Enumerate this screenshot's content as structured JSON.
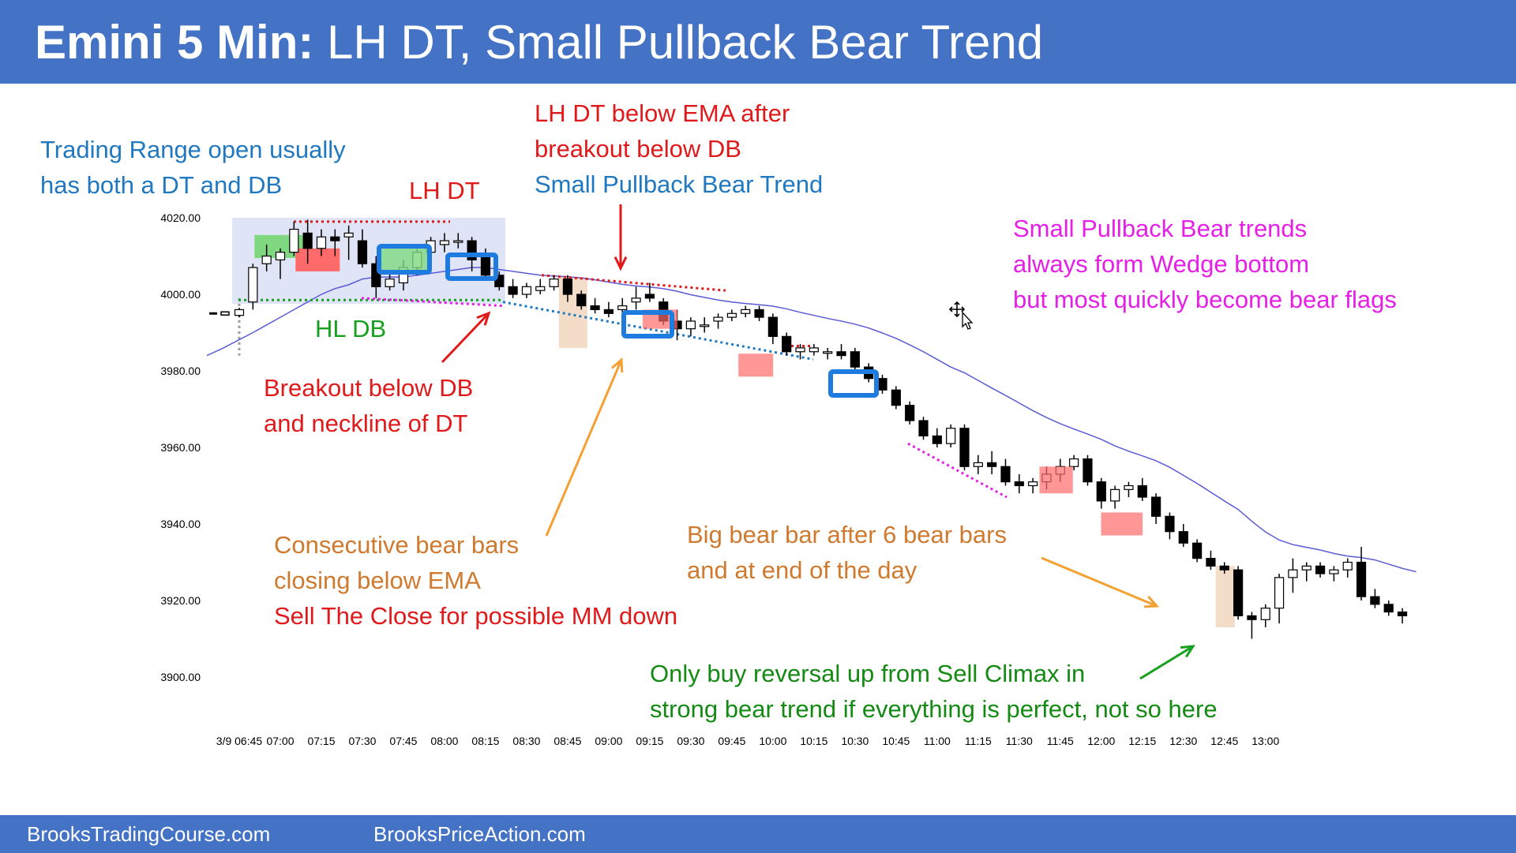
{
  "header": {
    "title_bold": "Emini 5 Min:",
    "title_rest": "LH DT, Small Pullback Bear Trend"
  },
  "footer": {
    "left": "BrooksTradingCourse.com",
    "right": "BrooksPriceAction.com"
  },
  "colors": {
    "brand_bar": "#4472c4",
    "ema": "#5b5bd6",
    "bull_body": "#ffffff",
    "bear_body": "#000000",
    "red_annotation": "#e0191b",
    "blue_annotation": "#1f78c0",
    "green_annotation": "#17a01f",
    "orange_annotation": "#cf7a2e",
    "magenta_annotation": "#e61fe6",
    "highlight_blue_box": "#1e7be0",
    "highlight_red_box": "#ff6b6b",
    "highlight_green_box": "#7fd87f",
    "range_shade": "#dfe5f7",
    "climax_shade": "#f3dcc8"
  },
  "annotations": {
    "trading_range": [
      "Trading Range open usually",
      "has both a DT and DB"
    ],
    "lh_dt_label": "LH DT",
    "hl_db_label": "HL DB",
    "lh_dt_below_ema": [
      "LH DT below EMA after",
      "breakout below DB"
    ],
    "small_pullback_bear_trend": "Small Pullback Bear Trend",
    "breakout_below_db": [
      "Breakout below DB",
      "and neckline of DT"
    ],
    "spbt_wedge": [
      "Small Pullback Bear trends",
      "always form Wedge bottom",
      "but most quickly become bear flags"
    ],
    "consecutive_bear": [
      "Consecutive bear bars",
      "closing below EMA"
    ],
    "sell_the_close": "Sell The Close for possible MM down",
    "big_bear_bar": [
      "Big bear bar after 6 bear bars",
      "and at end of the day"
    ],
    "only_buy_reversal": [
      "Only buy reversal up from Sell Climax in",
      "strong bear trend if everything is perfect, not so here"
    ]
  },
  "chart_data": {
    "type": "candlestick",
    "title": "",
    "xlabel": "",
    "ylabel": "",
    "ylim": [
      3890,
      4025
    ],
    "y_ticks": [
      "4020.00",
      "4000.00",
      "3980.00",
      "3960.00",
      "3940.00",
      "3920.00",
      "3900.00"
    ],
    "y_tick_values": [
      4020,
      4000,
      3980,
      3960,
      3940,
      3920,
      3900
    ],
    "x_tick_labels": [
      "3/9 06:45",
      "07:00",
      "07:15",
      "07:30",
      "07:45",
      "08:00",
      "08:15",
      "08:30",
      "08:45",
      "09:00",
      "09:15",
      "09:30",
      "09:45",
      "10:00",
      "10:15",
      "10:30",
      "10:45",
      "11:00",
      "11:15",
      "11:30",
      "11:45",
      "12:00",
      "12:15",
      "12:30",
      "12:45",
      "13:00"
    ],
    "x_tick_bar_index": [
      0,
      3,
      6,
      9,
      12,
      15,
      18,
      21,
      24,
      27,
      30,
      33,
      36,
      39,
      42,
      45,
      48,
      51,
      54,
      57,
      60,
      63,
      66,
      69,
      72,
      75
    ],
    "first_bar_time": "06:40",
    "bar_interval_minutes": 5,
    "prior_day_close": 3995,
    "bars": [
      {
        "o": 3994.5,
        "h": 3996.5,
        "l": 3994.0,
        "c": 3996.0
      },
      {
        "o": 3998.0,
        "h": 4008.0,
        "l": 3996.0,
        "c": 4007.0
      },
      {
        "o": 4008.0,
        "h": 4013.0,
        "l": 4006.0,
        "c": 4010.0
      },
      {
        "o": 4009.0,
        "h": 4012.0,
        "l": 4004.0,
        "c": 4011.0
      },
      {
        "o": 4011.0,
        "h": 4019.0,
        "l": 4010.0,
        "c": 4017.0
      },
      {
        "o": 4016.0,
        "h": 4019.5,
        "l": 4008.0,
        "c": 4012.0
      },
      {
        "o": 4012.0,
        "h": 4017.0,
        "l": 4010.0,
        "c": 4015.0
      },
      {
        "o": 4015.0,
        "h": 4017.0,
        "l": 4010.0,
        "c": 4014.0
      },
      {
        "o": 4015.0,
        "h": 4018.0,
        "l": 4009.0,
        "c": 4016.0
      },
      {
        "o": 4014.0,
        "h": 4017.0,
        "l": 4007.0,
        "c": 4008.0
      },
      {
        "o": 4008.0,
        "h": 4010.0,
        "l": 3999.0,
        "c": 4002.0
      },
      {
        "o": 4002.0,
        "h": 4006.0,
        "l": 4001.0,
        "c": 4004.0
      },
      {
        "o": 4003.0,
        "h": 4009.0,
        "l": 4001.0,
        "c": 4007.0
      },
      {
        "o": 4007.0,
        "h": 4012.0,
        "l": 4005.0,
        "c": 4011.0
      },
      {
        "o": 4011.0,
        "h": 4015.0,
        "l": 4009.0,
        "c": 4014.0
      },
      {
        "o": 4013.0,
        "h": 4016.0,
        "l": 4011.0,
        "c": 4014.0
      },
      {
        "o": 4014.0,
        "h": 4016.0,
        "l": 4012.0,
        "c": 4014.0
      },
      {
        "o": 4014.0,
        "h": 4015.0,
        "l": 4006.0,
        "c": 4009.0
      },
      {
        "o": 4010.0,
        "h": 4012.0,
        "l": 4004.0,
        "c": 4005.0
      },
      {
        "o": 4005.0,
        "h": 4006.0,
        "l": 4001.0,
        "c": 4002.0
      },
      {
        "o": 4002.0,
        "h": 4004.0,
        "l": 3999.0,
        "c": 4000.0
      },
      {
        "o": 4000.0,
        "h": 4003.0,
        "l": 3999.0,
        "c": 4002.0
      },
      {
        "o": 4001.0,
        "h": 4004.0,
        "l": 4000.0,
        "c": 4002.0
      },
      {
        "o": 4002.0,
        "h": 4005.0,
        "l": 4001.0,
        "c": 4004.0
      },
      {
        "o": 4004.0,
        "h": 4005.0,
        "l": 3998.0,
        "c": 4000.0
      },
      {
        "o": 4000.0,
        "h": 4001.0,
        "l": 3996.0,
        "c": 3997.0
      },
      {
        "o": 3997.0,
        "h": 3999.0,
        "l": 3995.0,
        "c": 3996.0
      },
      {
        "o": 3996.0,
        "h": 3998.0,
        "l": 3994.0,
        "c": 3995.0
      },
      {
        "o": 3996.0,
        "h": 3999.0,
        "l": 3994.0,
        "c": 3997.0
      },
      {
        "o": 3998.0,
        "h": 4002.0,
        "l": 3996.0,
        "c": 3999.0
      },
      {
        "o": 4000.0,
        "h": 4003.0,
        "l": 3998.0,
        "c": 3999.0
      },
      {
        "o": 3998.0,
        "h": 3999.0,
        "l": 3992.0,
        "c": 3993.0
      },
      {
        "o": 3993.0,
        "h": 3996.0,
        "l": 3988.0,
        "c": 3991.0
      },
      {
        "o": 3991.0,
        "h": 3994.0,
        "l": 3989.0,
        "c": 3993.0
      },
      {
        "o": 3992.0,
        "h": 3994.0,
        "l": 3990.0,
        "c": 3992.0
      },
      {
        "o": 3993.0,
        "h": 3995.0,
        "l": 3991.0,
        "c": 3994.0
      },
      {
        "o": 3994.0,
        "h": 3996.0,
        "l": 3993.0,
        "c": 3995.0
      },
      {
        "o": 3995.0,
        "h": 3997.0,
        "l": 3994.0,
        "c": 3996.0
      },
      {
        "o": 3996.0,
        "h": 3997.0,
        "l": 3993.0,
        "c": 3994.0
      },
      {
        "o": 3994.0,
        "h": 3995.0,
        "l": 3987.0,
        "c": 3989.0
      },
      {
        "o": 3989.0,
        "h": 3990.0,
        "l": 3984.0,
        "c": 3985.0
      },
      {
        "o": 3985.0,
        "h": 3987.0,
        "l": 3983.0,
        "c": 3986.0
      },
      {
        "o": 3985.0,
        "h": 3987.0,
        "l": 3984.0,
        "c": 3986.0
      },
      {
        "o": 3985.0,
        "h": 3986.0,
        "l": 3983.0,
        "c": 3985.0
      },
      {
        "o": 3985.0,
        "h": 3987.0,
        "l": 3983.0,
        "c": 3984.0
      },
      {
        "o": 3985.0,
        "h": 3986.0,
        "l": 3980.0,
        "c": 3981.0
      },
      {
        "o": 3981.0,
        "h": 3982.0,
        "l": 3977.0,
        "c": 3978.0
      },
      {
        "o": 3978.0,
        "h": 3979.0,
        "l": 3974.0,
        "c": 3975.0
      },
      {
        "o": 3975.0,
        "h": 3976.0,
        "l": 3970.0,
        "c": 3971.0
      },
      {
        "o": 3971.0,
        "h": 3972.0,
        "l": 3966.0,
        "c": 3967.0
      },
      {
        "o": 3967.0,
        "h": 3968.0,
        "l": 3962.0,
        "c": 3963.0
      },
      {
        "o": 3963.0,
        "h": 3965.0,
        "l": 3960.0,
        "c": 3961.0
      },
      {
        "o": 3961.0,
        "h": 3966.0,
        "l": 3960.0,
        "c": 3965.0
      },
      {
        "o": 3965.0,
        "h": 3966.0,
        "l": 3954.0,
        "c": 3955.0
      },
      {
        "o": 3955.0,
        "h": 3958.0,
        "l": 3953.0,
        "c": 3956.0
      },
      {
        "o": 3956.0,
        "h": 3959.0,
        "l": 3953.0,
        "c": 3955.0
      },
      {
        "o": 3955.0,
        "h": 3957.0,
        "l": 3950.0,
        "c": 3951.0
      },
      {
        "o": 3951.0,
        "h": 3953.0,
        "l": 3948.0,
        "c": 3950.0
      },
      {
        "o": 3950.0,
        "h": 3952.0,
        "l": 3948.0,
        "c": 3951.0
      },
      {
        "o": 3951.0,
        "h": 3955.0,
        "l": 3949.0,
        "c": 3953.0
      },
      {
        "o": 3953.0,
        "h": 3957.0,
        "l": 3951.0,
        "c": 3955.0
      },
      {
        "o": 3955.0,
        "h": 3958.0,
        "l": 3954.0,
        "c": 3957.0
      },
      {
        "o": 3957.0,
        "h": 3958.0,
        "l": 3950.0,
        "c": 3951.0
      },
      {
        "o": 3951.0,
        "h": 3952.0,
        "l": 3944.0,
        "c": 3946.0
      },
      {
        "o": 3946.0,
        "h": 3950.0,
        "l": 3944.0,
        "c": 3949.0
      },
      {
        "o": 3949.0,
        "h": 3951.0,
        "l": 3947.0,
        "c": 3950.0
      },
      {
        "o": 3950.0,
        "h": 3952.0,
        "l": 3946.0,
        "c": 3947.0
      },
      {
        "o": 3947.0,
        "h": 3948.0,
        "l": 3940.0,
        "c": 3942.0
      },
      {
        "o": 3942.0,
        "h": 3943.0,
        "l": 3936.0,
        "c": 3938.0
      },
      {
        "o": 3938.0,
        "h": 3940.0,
        "l": 3934.0,
        "c": 3935.0
      },
      {
        "o": 3935.0,
        "h": 3936.0,
        "l": 3930.0,
        "c": 3931.0
      },
      {
        "o": 3931.0,
        "h": 3933.0,
        "l": 3928.0,
        "c": 3929.0
      },
      {
        "o": 3929.0,
        "h": 3930.0,
        "l": 3927.0,
        "c": 3928.0
      },
      {
        "o": 3928.0,
        "h": 3929.0,
        "l": 3915.0,
        "c": 3916.0
      },
      {
        "o": 3916.0,
        "h": 3917.0,
        "l": 3910.0,
        "c": 3915.0
      },
      {
        "o": 3915.0,
        "h": 3919.0,
        "l": 3913.0,
        "c": 3918.0
      },
      {
        "o": 3918.0,
        "h": 3927.0,
        "l": 3914.0,
        "c": 3926.0
      },
      {
        "o": 3926.0,
        "h": 3931.0,
        "l": 3922.0,
        "c": 3928.0
      },
      {
        "o": 3928.0,
        "h": 3930.0,
        "l": 3925.0,
        "c": 3929.0
      },
      {
        "o": 3929.0,
        "h": 3930.0,
        "l": 3926.0,
        "c": 3927.0
      },
      {
        "o": 3927.0,
        "h": 3929.0,
        "l": 3925.0,
        "c": 3928.0
      },
      {
        "o": 3928.0,
        "h": 3931.0,
        "l": 3926.0,
        "c": 3930.0
      },
      {
        "o": 3930.0,
        "h": 3934.0,
        "l": 3920.0,
        "c": 3921.0
      },
      {
        "o": 3921.0,
        "h": 3923.0,
        "l": 3918.0,
        "c": 3919.0
      },
      {
        "o": 3919.0,
        "h": 3920.0,
        "l": 3916.0,
        "c": 3917.0
      },
      {
        "o": 3917.0,
        "h": 3918.0,
        "l": 3914.0,
        "c": 3916.0
      }
    ],
    "ema": [
      3990.0,
      3992.0,
      3994.0,
      3996.0,
      3998.0,
      4000.0,
      4001.5,
      4002.5,
      4004.0,
      4004.5,
      4004.5,
      4004.5,
      4005.0,
      4005.5,
      4006.0,
      4006.5,
      4007.0,
      4007.0,
      4006.5,
      4006.0,
      4005.5,
      4005.0,
      4004.8,
      4004.6,
      4004.3,
      4003.8,
      4003.2,
      4002.6,
      4002.2,
      4001.9,
      4001.5,
      4000.8,
      3999.9,
      3999.2,
      3998.5,
      3998.0,
      3997.6,
      3997.3,
      3996.9,
      3996.2,
      3995.3,
      3994.5,
      3993.7,
      3993.0,
      3992.2,
      3991.2,
      3989.9,
      3988.5,
      3986.8,
      3985.0,
      3983.0,
      3981.0,
      3979.5,
      3977.5,
      3975.5,
      3973.6,
      3971.6,
      3969.6,
      3967.8,
      3966.2,
      3964.8,
      3963.5,
      3962.1,
      3960.4,
      3959.0,
      3957.8,
      3956.5,
      3954.8,
      3952.7,
      3950.6,
      3948.3,
      3946.0,
      3943.8,
      3940.7,
      3937.9,
      3935.8,
      3934.6,
      3933.9,
      3933.2,
      3932.3,
      3931.6,
      3931.2,
      3930.6,
      3929.5,
      3928.4,
      3927.5
    ]
  }
}
